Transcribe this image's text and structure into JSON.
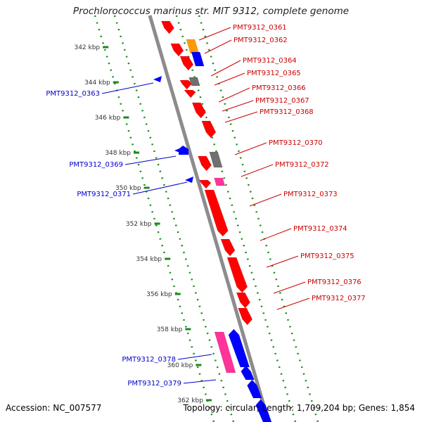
{
  "title": "Prochlorococcus marinus str. MIT 9312, complete genome",
  "footer": {
    "accession": "Accession: NC_007577",
    "summary": "Topology: circular; Length: 1,709,204 bp; Genes: 1,854"
  },
  "colors": {
    "backbone": "#8c8c8c",
    "forward": "#ff0000",
    "reverse": "#0000ff",
    "orange": "#ff9900",
    "gray": "#707070",
    "pink": "#ff3399",
    "dots": "#1a8a1a",
    "label_fwd": "#cc0000",
    "label_rev": "#0000cc"
  },
  "ticks": [
    "342 kbp",
    "344 kbp",
    "346 kbp",
    "348 kbp",
    "350 kbp",
    "352 kbp",
    "354 kbp",
    "356 kbp",
    "358 kbp",
    "360 kbp",
    "362 kbp"
  ],
  "forward_labels": [
    "PMT9312_0361",
    "PMT9312_0362",
    "PMT9312_0364",
    "PMT9312_0365",
    "PMT9312_0366",
    "PMT9312_0367",
    "PMT9312_0368",
    "PMT9312_0370",
    "PMT9312_0372",
    "PMT9312_0373",
    "PMT9312_0374",
    "PMT9312_0375",
    "PMT9312_0376",
    "PMT9312_0377"
  ],
  "reverse_labels": [
    "PMT9312_0363",
    "PMT9312_0369",
    "PMT9312_0371",
    "PMT9312_0378",
    "PMT9312_0379"
  ]
}
